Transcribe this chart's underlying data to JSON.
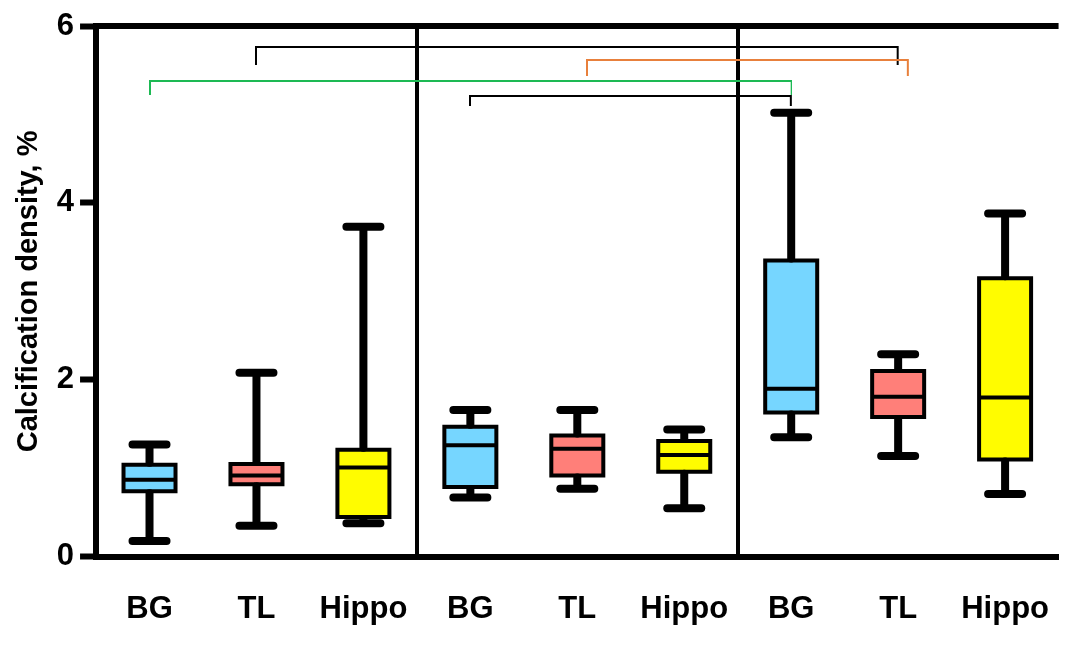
{
  "chart_data": {
    "type": "box",
    "ylabel": "Calcification density, %",
    "categories": [
      "BG",
      "TL",
      "Hippo",
      "BG",
      "TL",
      "Hippo",
      "BG",
      "TL",
      "Hippo"
    ],
    "colors": [
      "#76d6ff",
      "#ff7f79",
      "#fffc00",
      "#76d6ff",
      "#ff7f79",
      "#fffc00",
      "#76d6ff",
      "#ff7f79",
      "#fffc00"
    ],
    "boxes": [
      {
        "low": 0.18,
        "q1": 0.74,
        "median": 0.87,
        "q3": 1.04,
        "high": 1.27
      },
      {
        "low": 0.35,
        "q1": 0.82,
        "median": 0.92,
        "q3": 1.05,
        "high": 2.08
      },
      {
        "low": 0.38,
        "q1": 0.45,
        "median": 1.01,
        "q3": 1.21,
        "high": 3.73
      },
      {
        "low": 0.67,
        "q1": 0.79,
        "median": 1.26,
        "q3": 1.47,
        "high": 1.66
      },
      {
        "low": 0.77,
        "q1": 0.92,
        "median": 1.22,
        "q3": 1.37,
        "high": 1.66
      },
      {
        "low": 0.55,
        "q1": 0.96,
        "median": 1.15,
        "q3": 1.31,
        "high": 1.44
      },
      {
        "low": 1.35,
        "q1": 1.63,
        "median": 1.9,
        "q3": 3.35,
        "high": 5.02
      },
      {
        "low": 1.14,
        "q1": 1.58,
        "median": 1.81,
        "q3": 2.1,
        "high": 2.29
      },
      {
        "low": 0.71,
        "q1": 1.1,
        "median": 1.8,
        "q3": 3.15,
        "high": 3.88
      }
    ],
    "ylim": [
      0,
      6
    ],
    "yticks": [
      0,
      2,
      4,
      6
    ],
    "grid": false
  }
}
